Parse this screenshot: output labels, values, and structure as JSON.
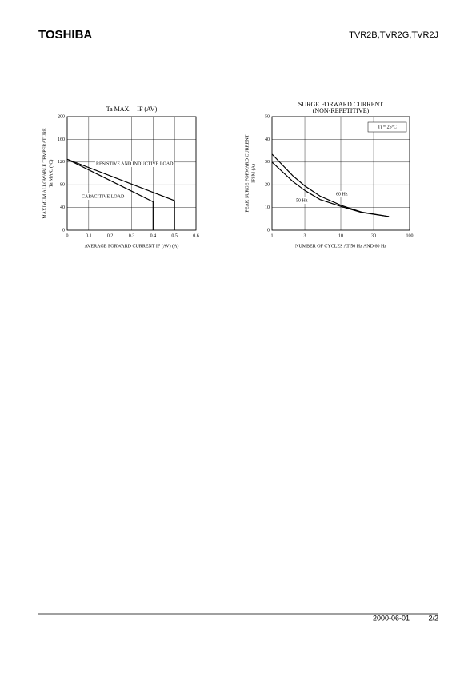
{
  "header": {
    "brand": "TOSHIBA",
    "part": "TVR2B,TVR2G,TVR2J"
  },
  "footer": {
    "date": "2000-06-01",
    "page": "2/2"
  },
  "chart_data": [
    {
      "type": "line",
      "title": "Ta MAX. – IF (AV)",
      "y_label": [
        "MAXIMUM ALLOWABLE TEMPERATURE",
        "Ta MAX. (°C)"
      ],
      "x_label": "AVERAGE FORWARD CURRENT  IF (AV)  (A)",
      "xlim": [
        0,
        0.6
      ],
      "xticks": [
        0,
        0.1,
        0.2,
        0.3,
        0.4,
        0.5,
        0.6
      ],
      "ylim": [
        0,
        200
      ],
      "yticks": [
        0,
        40,
        80,
        120,
        160,
        200
      ],
      "grid": true,
      "xlog": false,
      "series": [
        {
          "name": "RESISTIVE AND INDUCTIVE LOAD",
          "color": "#000000",
          "x": [
            0,
            0.5,
            0.5
          ],
          "values": [
            125,
            52,
            0
          ]
        },
        {
          "name": "CAPACITIVE LOAD",
          "color": "#000000",
          "x": [
            0,
            0.4,
            0.4
          ],
          "values": [
            125,
            50,
            0
          ]
        }
      ]
    },
    {
      "type": "line",
      "title": "SURGE FORWARD CURRENT",
      "subtitle": "(NON-REPETITIVE)",
      "annotation": "Tj = 25°C",
      "y_label": [
        "PEAK SURGE FORWARD CURRENT",
        "IFSM  (A)"
      ],
      "x_label": "NUMBER OF CYCLES AT 50 Hz AND 60 Hz",
      "xlim": [
        1,
        100
      ],
      "xticks": [
        1,
        3,
        10,
        30,
        100
      ],
      "ylim": [
        0,
        50
      ],
      "yticks": [
        0,
        10,
        20,
        30,
        40,
        50
      ],
      "grid": true,
      "xlog": true,
      "series": [
        {
          "name": "60 Hz",
          "color": "#000000",
          "x": [
            1,
            2,
            3,
            5,
            10,
            20,
            50
          ],
          "values": [
            33.5,
            24,
            19.5,
            15,
            11,
            8,
            6
          ]
        },
        {
          "name": "50 Hz",
          "color": "#000000",
          "x": [
            1,
            2,
            3,
            5,
            10,
            20,
            50
          ],
          "values": [
            30,
            21.5,
            17.5,
            13.5,
            10.5,
            7.8,
            6
          ]
        }
      ]
    }
  ]
}
